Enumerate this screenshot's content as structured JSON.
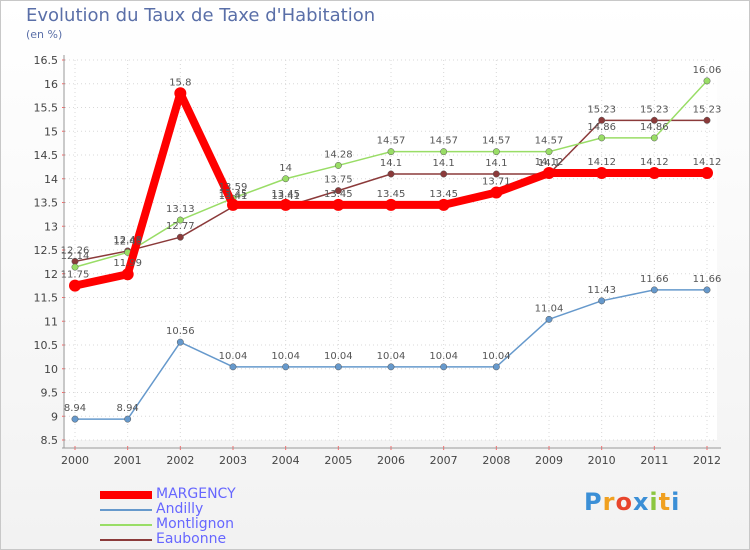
{
  "header": {
    "title": "Evolution du Taux de Taxe d'Habitation",
    "unit": "(en %)"
  },
  "chart_data": {
    "type": "line",
    "title": "Evolution du Taux de Taxe d'Habitation",
    "ylabel": "(en %)",
    "xlabel": "",
    "x": [
      "2000",
      "2001",
      "2002",
      "2003",
      "2004",
      "2005",
      "2006",
      "2007",
      "2008",
      "2009",
      "2010",
      "2011",
      "2012"
    ],
    "ylim": [
      8.5,
      16.5
    ],
    "yticks": [
      8.5,
      9,
      9.5,
      10,
      10.5,
      11,
      11.5,
      12,
      12.5,
      13,
      13.5,
      14,
      14.5,
      15,
      15.5,
      16,
      16.5
    ],
    "ytick_labels": [
      "8.5",
      "9",
      "9.5",
      "10",
      "10.5",
      "11",
      "11.5",
      "12",
      "12.5",
      "13",
      "13.5",
      "14",
      "14.5",
      "15",
      "15.5",
      "16",
      "16.5"
    ],
    "series": [
      {
        "name": "MARGENCY",
        "color": "#ff0000",
        "values": [
          11.75,
          11.99,
          15.8,
          13.45,
          13.45,
          13.45,
          13.45,
          13.45,
          13.71,
          14.12,
          14.12,
          14.12,
          14.12
        ],
        "labels": [
          "11.75",
          "11.99",
          "15.8",
          "13.45",
          "13.45",
          "13.45",
          "13.45",
          "13.45",
          "13.71",
          "14.12",
          "14.12",
          "14.12",
          "14.12"
        ]
      },
      {
        "name": "Andilly",
        "color": "#6699cc",
        "values": [
          8.94,
          8.94,
          10.56,
          10.04,
          10.04,
          10.04,
          10.04,
          10.04,
          10.04,
          11.04,
          11.43,
          11.66,
          11.66
        ],
        "labels": [
          "8.94",
          "8.94",
          "10.56",
          "10.04",
          "10.04",
          "10.04",
          "10.04",
          "10.04",
          "10.04",
          "11.04",
          "11.43",
          "11.66",
          "11.66"
        ]
      },
      {
        "name": "Montlignon",
        "color": "#99dd66",
        "values": [
          12.14,
          12.45,
          13.13,
          13.59,
          14,
          14.28,
          14.57,
          14.57,
          14.57,
          14.57,
          14.86,
          14.86,
          16.06
        ],
        "labels": [
          "12.14",
          "12.45",
          "13.13",
          "13.59",
          "14",
          "14.28",
          "14.57",
          "14.57",
          "14.57",
          "14.57",
          "14.86",
          "14.86",
          "16.06"
        ]
      },
      {
        "name": "Eaubonne",
        "color": "#8b3a3a",
        "values": [
          12.26,
          12.48,
          12.77,
          13.41,
          13.41,
          13.75,
          14.1,
          14.1,
          14.1,
          14.1,
          15.23,
          15.23,
          15.23
        ],
        "labels": [
          "12.26",
          "12.48",
          "12.77",
          "13.41",
          "13.41",
          "13.75",
          "14.1",
          "14.1",
          "14.1",
          "14.1",
          "15.23",
          "15.23",
          "15.23"
        ]
      }
    ],
    "legend_position": "bottom-left",
    "grid": true
  },
  "legend": {
    "items": [
      {
        "label": "MARGENCY",
        "color": "#ff0000"
      },
      {
        "label": "Andilly",
        "color": "#6699cc"
      },
      {
        "label": "Montlignon",
        "color": "#99dd66"
      },
      {
        "label": "Eaubonne",
        "color": "#8b3a3a"
      }
    ]
  },
  "logo": {
    "letters": [
      "P",
      "r",
      "o",
      "x",
      "i",
      "t",
      "i"
    ],
    "colors": [
      "#3b8fd6",
      "#f0a020",
      "#e8452c",
      "#3b8fd6",
      "#8cc63f",
      "#f0a020",
      "#3b8fd6"
    ]
  }
}
